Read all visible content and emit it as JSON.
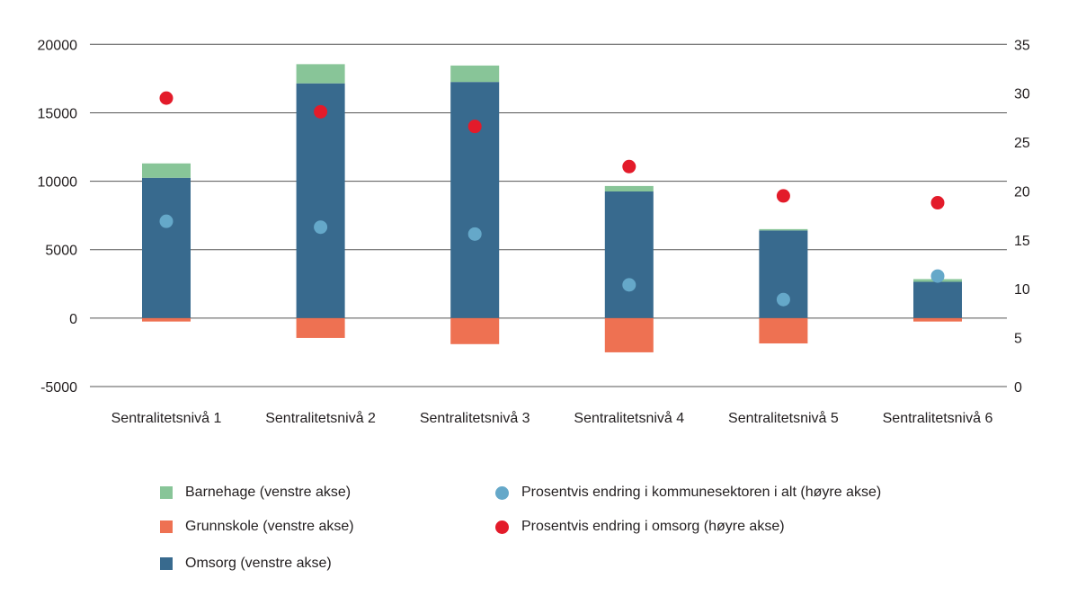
{
  "chart_data": {
    "type": "bar",
    "stacked": true,
    "categories": [
      "Sentralitetsnivå 1",
      "Sentralitetsnivå 2",
      "Sentralitetsnivå 3",
      "Sentralitetsnivå 4",
      "Sentralitetsnivå 5",
      "Sentralitetsnivå 6"
    ],
    "left_axis": {
      "ylim": [
        -5000,
        20000
      ],
      "ticks": [
        -5000,
        0,
        5000,
        10000,
        15000,
        20000
      ]
    },
    "right_axis": {
      "ylim": [
        0,
        35
      ],
      "ticks": [
        0,
        5,
        10,
        15,
        20,
        25,
        30,
        35
      ]
    },
    "grid": true,
    "legend_position": "bottom",
    "series": [
      {
        "name": "Barnehage (venstre akse)",
        "type": "bar",
        "axis": "left",
        "color": "#88c598",
        "values": [
          1050,
          1400,
          1200,
          400,
          100,
          200
        ]
      },
      {
        "name": "Grunnskole (venstre akse)",
        "type": "bar",
        "axis": "left",
        "color": "#ee7152",
        "values": [
          -250,
          -1450,
          -1900,
          -2500,
          -1850,
          -250
        ]
      },
      {
        "name": "Omsorg (venstre akse)",
        "type": "bar",
        "axis": "left",
        "color": "#386a8e",
        "values": [
          10250,
          17150,
          17250,
          9250,
          6400,
          2650
        ]
      },
      {
        "name": "Prosentvis endring i kommunesektoren i alt (høyre akse)",
        "type": "scatter",
        "axis": "right",
        "color": "#65a8c9",
        "values": [
          16.9,
          16.3,
          15.6,
          10.4,
          8.9,
          11.3
        ]
      },
      {
        "name": "Prosentvis endring i omsorg (høyre akse)",
        "type": "scatter",
        "axis": "right",
        "color": "#e31b2a",
        "values": [
          29.5,
          28.1,
          26.6,
          22.5,
          19.5,
          18.8
        ]
      }
    ]
  }
}
